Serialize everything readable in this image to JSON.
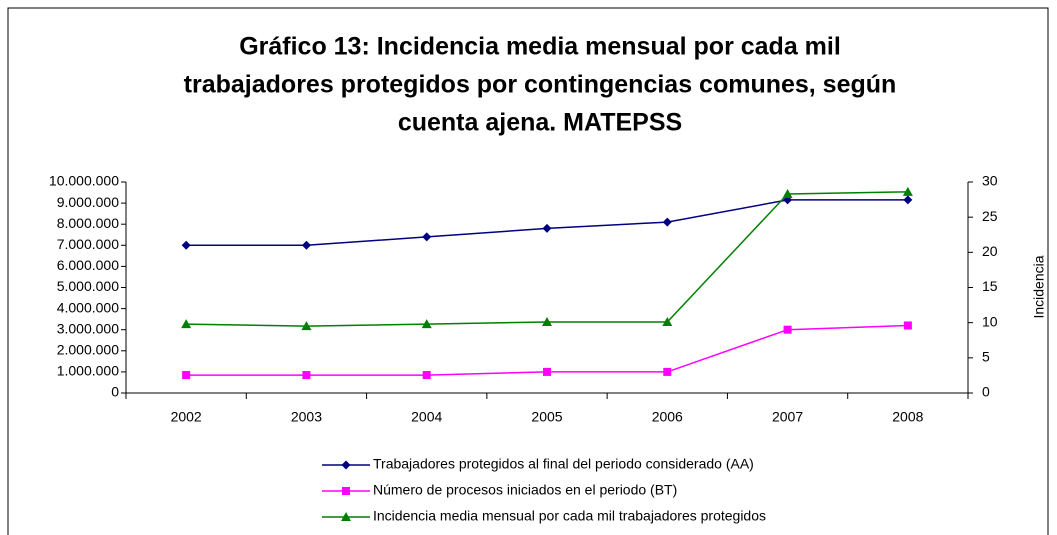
{
  "chart_data": {
    "type": "line",
    "title": [
      "Gráfico 13: Incidencia media mensual por cada mil",
      "trabajadores protegidos por contingencias comunes, según",
      "cuenta ajena. MATEPSS"
    ],
    "categories": [
      "2002",
      "2003",
      "2004",
      "2005",
      "2006",
      "2007",
      "2008"
    ],
    "series": [
      {
        "name": "Trabajadores protegidos al final del periodo considerado (AA)",
        "color": "#000080",
        "marker": "diamond",
        "values": [
          7000000,
          7000000,
          7400000,
          7800000,
          8100000,
          9150000,
          9150000
        ]
      },
      {
        "name": "Número de procesos iniciados en el periodo (BT)",
        "color": "#ff00ff",
        "marker": "square",
        "values": [
          850000,
          850000,
          850000,
          1000000,
          1000000,
          3000000,
          3200000
        ]
      },
      {
        "name": "Incidencia media mensual por cada mil trabajadores protegidos",
        "color": "#008000",
        "marker": "triangle",
        "axis": "y2",
        "values": [
          9.8,
          9.5,
          9.8,
          10.1,
          10.1,
          28.3,
          28.6
        ]
      }
    ],
    "ylim": [
      0,
      10000000
    ],
    "yticks": [
      0,
      {
        "value": 1000000,
        "label": "1.000.000"
      },
      {
        "value": 2000000,
        "label": "2.000.000"
      },
      {
        "value": 3000000,
        "label": "3.000.000"
      },
      {
        "value": 4000000,
        "label": "4.000.000"
      },
      {
        "value": 5000000,
        "label": "5.000.000"
      },
      {
        "value": 6000000,
        "label": "6.000.000"
      },
      {
        "value": 7000000,
        "label": "7.000.000"
      },
      {
        "value": 8000000,
        "label": "8.000.000"
      },
      {
        "value": 9000000,
        "label": "9.000.000"
      },
      {
        "value": 10000000,
        "label": "10.000.000"
      }
    ],
    "y2lim": [
      0,
      30
    ],
    "y2ticks": [
      0,
      5,
      10,
      15,
      20,
      25,
      30
    ],
    "y2label": "Incidencia"
  }
}
